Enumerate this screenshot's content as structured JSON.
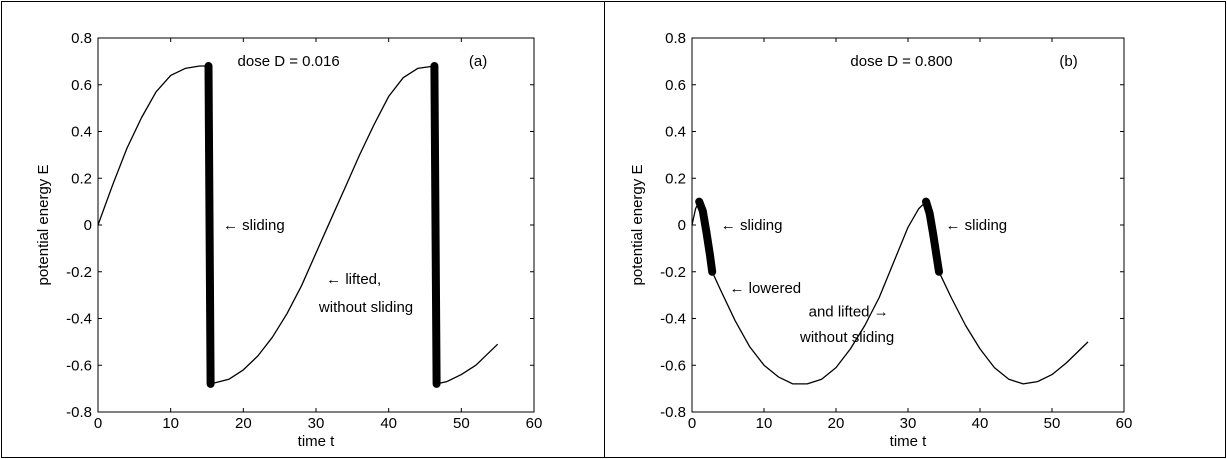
{
  "chart_data": [
    {
      "type": "line",
      "panel_label": "(a)",
      "annotation_dose": "dose D = 0.016",
      "xlabel": "time t",
      "ylabel": "potential energy E",
      "xlim": [
        0,
        60
      ],
      "ylim": [
        -0.8,
        0.8
      ],
      "xticks": [
        0,
        10,
        20,
        30,
        40,
        50,
        60
      ],
      "yticks": [
        -0.8,
        -0.6,
        -0.4,
        -0.2,
        0,
        0.2,
        0.4,
        0.6,
        0.8
      ],
      "grid": false,
      "legend": "none",
      "series": [
        {
          "style": "thin",
          "x": [
            0,
            2,
            4,
            6,
            8,
            10,
            12,
            14,
            15.2
          ],
          "y": [
            0,
            0.17,
            0.33,
            0.46,
            0.57,
            0.64,
            0.67,
            0.68,
            0.68
          ]
        },
        {
          "style": "thick",
          "x": [
            15.2,
            15.5
          ],
          "y": [
            0.68,
            -0.68
          ]
        },
        {
          "style": "thin",
          "x": [
            15.5,
            18,
            20,
            22,
            24,
            26,
            28,
            30,
            32,
            34,
            36,
            38,
            40,
            42,
            44,
            46.3
          ],
          "y": [
            -0.68,
            -0.66,
            -0.62,
            -0.56,
            -0.48,
            -0.38,
            -0.26,
            -0.12,
            0.02,
            0.16,
            0.3,
            0.43,
            0.55,
            0.63,
            0.67,
            0.68
          ]
        },
        {
          "style": "thick",
          "x": [
            46.3,
            46.6
          ],
          "y": [
            0.68,
            -0.68
          ]
        },
        {
          "style": "thin",
          "x": [
            46.6,
            48,
            50,
            52,
            54,
            55
          ],
          "y": [
            -0.68,
            -0.67,
            -0.64,
            -0.6,
            -0.54,
            -0.51
          ]
        }
      ],
      "annotations": [
        {
          "text": "← sliding",
          "x": 17.2,
          "y": 0.0
        },
        {
          "text": "← lifted,",
          "x": 31.4,
          "y": -0.23
        },
        {
          "text": "without sliding",
          "x": 30.4,
          "y": -0.35
        }
      ]
    },
    {
      "type": "line",
      "panel_label": "(b)",
      "annotation_dose": "dose D = 0.800",
      "xlabel": "time t",
      "ylabel": "potential energy E",
      "xlim": [
        0,
        60
      ],
      "ylim": [
        -0.8,
        0.8
      ],
      "xticks": [
        0,
        10,
        20,
        30,
        40,
        50,
        60
      ],
      "yticks": [
        -0.8,
        -0.6,
        -0.4,
        -0.2,
        0,
        0.2,
        0.4,
        0.6,
        0.8
      ],
      "grid": false,
      "legend": "none",
      "series": [
        {
          "style": "thin",
          "x": [
            0,
            0.5,
            1.0
          ],
          "y": [
            0,
            0.07,
            0.1
          ]
        },
        {
          "style": "thick",
          "x": [
            1.0,
            1.5,
            2.0,
            2.5,
            2.8
          ],
          "y": [
            0.1,
            0.06,
            -0.03,
            -0.13,
            -0.2
          ]
        },
        {
          "style": "thin",
          "x": [
            2.8,
            4,
            6,
            8,
            10,
            12,
            14,
            16,
            18,
            20,
            22,
            24,
            26,
            28,
            30,
            31.5,
            32.5
          ],
          "y": [
            -0.2,
            -0.28,
            -0.41,
            -0.52,
            -0.6,
            -0.65,
            -0.68,
            -0.68,
            -0.66,
            -0.61,
            -0.53,
            -0.43,
            -0.31,
            -0.16,
            -0.01,
            0.07,
            0.1
          ]
        },
        {
          "style": "thick",
          "x": [
            32.5,
            33,
            33.5,
            34,
            34.3
          ],
          "y": [
            0.1,
            0.05,
            -0.04,
            -0.14,
            -0.2
          ]
        },
        {
          "style": "thin",
          "x": [
            34.3,
            36,
            38,
            40,
            42,
            44,
            46,
            48,
            50,
            52,
            54,
            55
          ],
          "y": [
            -0.2,
            -0.31,
            -0.43,
            -0.53,
            -0.61,
            -0.66,
            -0.68,
            -0.67,
            -0.64,
            -0.59,
            -0.53,
            -0.5
          ]
        }
      ],
      "annotations": [
        {
          "text": "← sliding",
          "x": 4.0,
          "y": 0.0
        },
        {
          "text": "← lowered",
          "x": 5.2,
          "y": -0.27
        },
        {
          "text": "and lifted →",
          "x": 16.2,
          "y": -0.37
        },
        {
          "text": "without sliding",
          "x": 15.0,
          "y": -0.48
        },
        {
          "text": "← sliding",
          "x": 35.2,
          "y": 0.0
        }
      ]
    }
  ]
}
